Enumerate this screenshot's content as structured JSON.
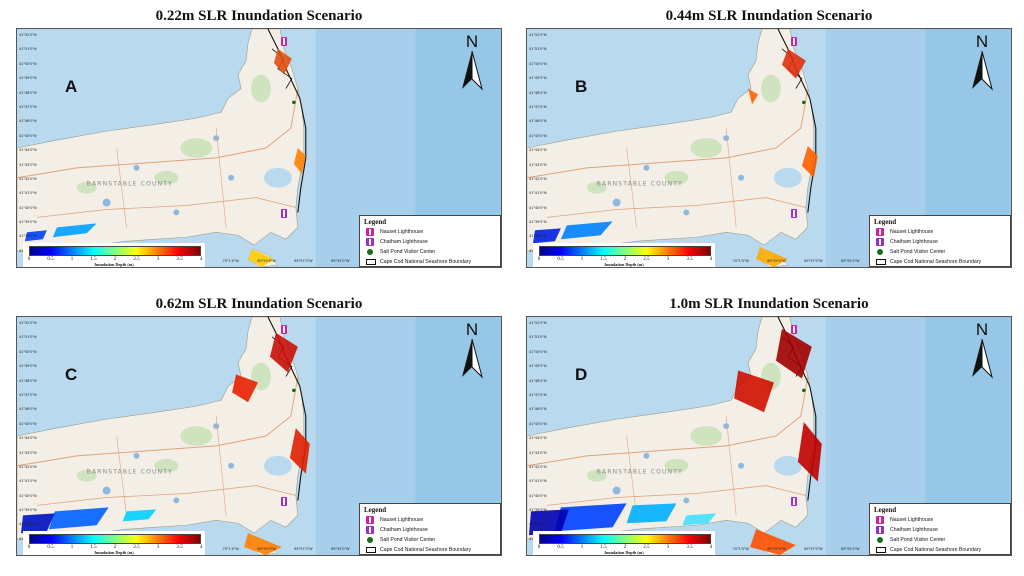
{
  "panels": [
    {
      "id": "A",
      "title": "0.22m SLR Inundation Scenario",
      "letter": "A"
    },
    {
      "id": "B",
      "title": "0.44m SLR Inundation Scenario",
      "letter": "B"
    },
    {
      "id": "C",
      "title": "0.62m SLR Inundation Scenario",
      "letter": "C"
    },
    {
      "id": "D",
      "title": "1.0m SLR Inundation Scenario",
      "letter": "D"
    }
  ],
  "north_arrow": "N",
  "depth_legend": {
    "ticks": [
      "0",
      "0.5",
      "1",
      "1.5",
      "2",
      "2.5",
      "3",
      "3.5",
      "4"
    ],
    "caption": "Inundation Depth (m)",
    "colors": [
      "#00008f",
      "#0000ff",
      "#0080ff",
      "#00ffff",
      "#80ff80",
      "#ffff00",
      "#ff8000",
      "#ff0000",
      "#800000"
    ]
  },
  "legend": {
    "title": "Legend",
    "items": [
      {
        "label": "Nauset Lighthouse",
        "icon": "lighthouse-icon",
        "color": "#d020a0"
      },
      {
        "label": "Chatham Lighthouse",
        "icon": "lighthouse-icon",
        "color": "#9a2fd0"
      },
      {
        "label": "Salt Pond Visitor Center",
        "icon": "visitor-center-icon",
        "color": "#1a6b1a"
      },
      {
        "label": "Cape Cod National Seashore Boundary",
        "icon": "boundary-icon",
        "color": "#111111"
      }
    ]
  },
  "lat_labels": [
    "41°52'0\"N",
    "41°51'0\"N",
    "41°50'0\"N",
    "41°49'0\"N",
    "41°48'0\"N",
    "41°47'0\"N",
    "41°46'0\"N",
    "41°45'0\"N",
    "41°44'0\"N",
    "41°43'0\"N",
    "41°42'0\"N",
    "41°41'0\"N",
    "41°40'0\"N",
    "41°39'0\"N",
    "41°38'0\"N",
    "41°37'0\"N"
  ],
  "lon_labels": [
    "70°11'0\"W",
    "70°9'0\"W",
    "70°7'0\"W",
    "70°5'0\"W",
    "70°3'0\"W",
    "70°1'0\"W",
    "69°59'0\"W",
    "69°57'0\"W",
    "69°55'0\"W",
    "69°53'0\"W",
    "69°51'0\"W",
    "69°49'0\"W",
    "69°47'0\"W"
  ],
  "map_labels": {
    "county": "BARNSTABLE COUNTY"
  },
  "colors": {
    "water": "#b8d9ee",
    "land": "#f3efe6",
    "park": "#cfe3bf",
    "roads": "#e0a27a",
    "ocean_deep": "#8fc3e6"
  }
}
